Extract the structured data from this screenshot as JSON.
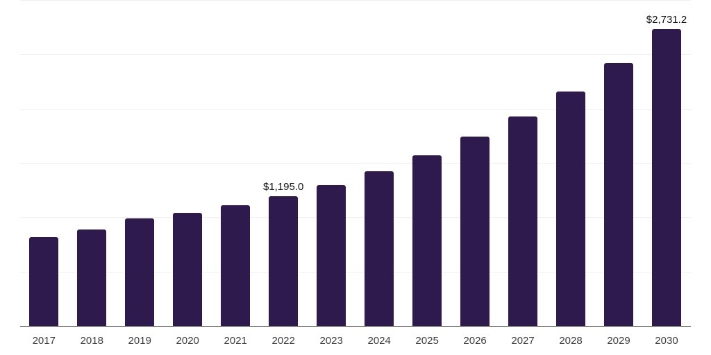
{
  "chart_data": {
    "type": "bar",
    "title": "",
    "xlabel": "",
    "ylabel": "",
    "categories": [
      "2017",
      "2018",
      "2019",
      "2020",
      "2021",
      "2022",
      "2023",
      "2024",
      "2025",
      "2026",
      "2027",
      "2028",
      "2029",
      "2030"
    ],
    "values": [
      817,
      887,
      989,
      1040,
      1113,
      1195.0,
      1295,
      1423,
      1570,
      1742,
      1930,
      2160,
      2421,
      2731.2
    ],
    "data_labels": {
      "2022": "$1,195.0",
      "2030": "$2,731.2"
    },
    "ylim": [
      0,
      3000
    ],
    "gridline_step": 500,
    "grid": "horizontal-only",
    "legend": "none",
    "y_tick_labels_visible": false,
    "colors": {
      "bar": "#2e1a4d",
      "axis_line": "#3a3a3a",
      "gridline": "#efefef",
      "tick_label": "#3d3d3d",
      "data_label": "#111111",
      "background": "#ffffff"
    }
  }
}
